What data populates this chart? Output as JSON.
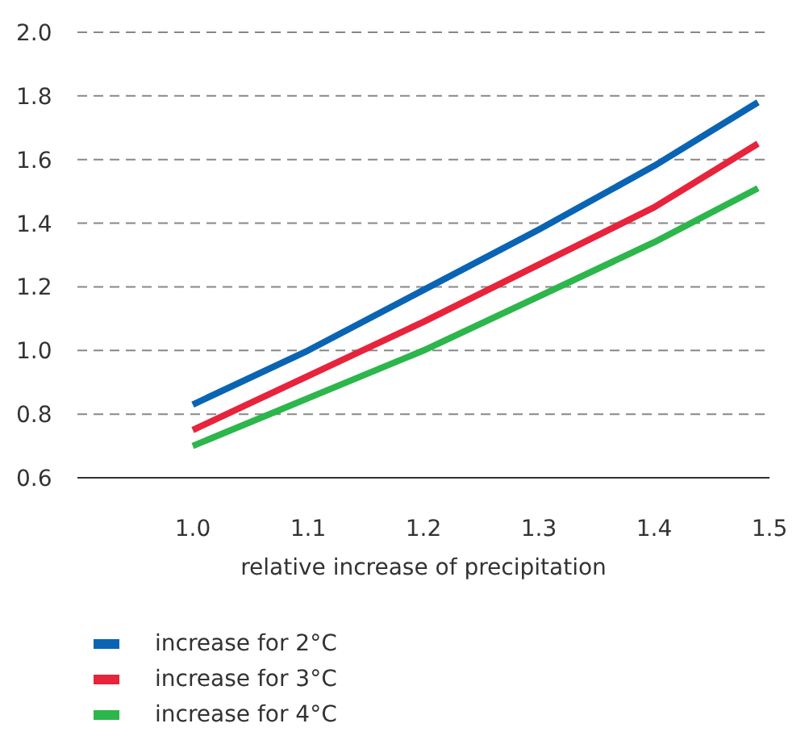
{
  "chart_data": {
    "type": "line",
    "xlabel": "relative increase of precipitation",
    "x": [
      1.0,
      1.1,
      1.2,
      1.3,
      1.4,
      1.49
    ],
    "series": [
      {
        "name": "increase for 2°C",
        "color": "#0a64b4",
        "values": [
          0.83,
          1.0,
          1.19,
          1.38,
          1.58,
          1.78
        ]
      },
      {
        "name": "increase for 3°C",
        "color": "#e8233c",
        "values": [
          0.75,
          0.92,
          1.09,
          1.27,
          1.45,
          1.65
        ]
      },
      {
        "name": "increase for 4°C",
        "color": "#2db64b",
        "values": [
          0.7,
          0.85,
          1.0,
          1.17,
          1.34,
          1.51
        ]
      }
    ],
    "xlim": [
      0.9,
      1.5
    ],
    "xticks": [
      {
        "value": 1,
        "label": "1.0"
      },
      1.1,
      1.2,
      1.3,
      1.4,
      1.5
    ],
    "ylim": [
      0.6,
      2.0
    ],
    "yticks": [
      0.6,
      0.8,
      {
        "value": 1,
        "label": "1.0"
      },
      1.2,
      1.4,
      1.6,
      1.8,
      {
        "value": 2,
        "label": "2.0"
      }
    ],
    "grid": "y",
    "legend": "bottom left",
    "marker": "none",
    "line_style": "solid"
  }
}
